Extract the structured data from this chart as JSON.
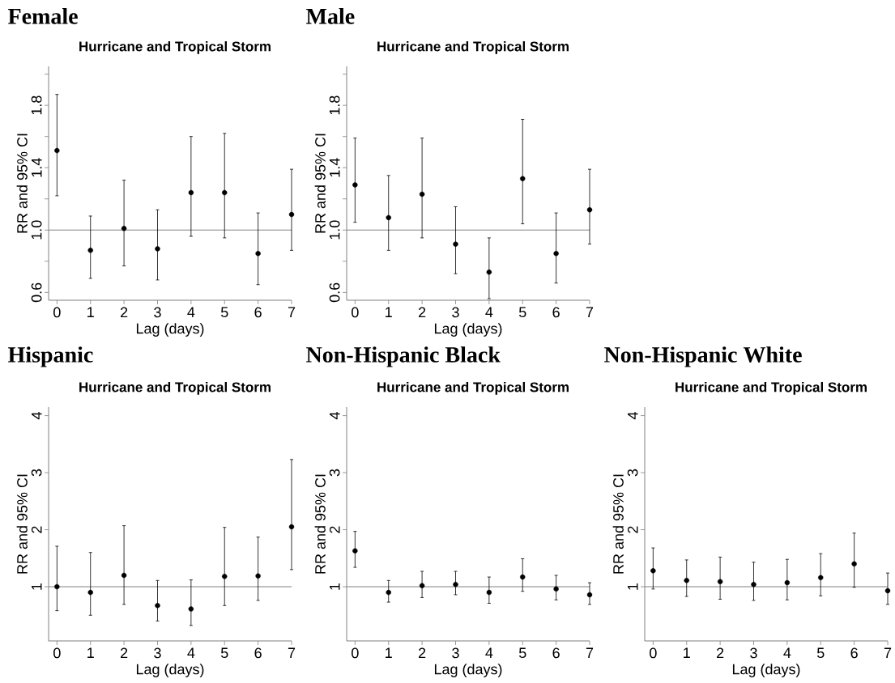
{
  "chart_data": [
    {
      "type": "scatter",
      "title": "Female",
      "subtitle": "Hurricane and Tropical Storm",
      "xlabel": "Lag (days)",
      "ylabel": "RR and 95% CI",
      "color": "#000000",
      "marker": "circle",
      "x": [
        0,
        1,
        2,
        3,
        4,
        5,
        6,
        7
      ],
      "values": [
        1.51,
        0.87,
        1.01,
        0.88,
        1.24,
        1.24,
        0.85,
        1.1
      ],
      "errors": [
        [
          1.22,
          1.87
        ],
        [
          0.69,
          1.09
        ],
        [
          0.77,
          1.32
        ],
        [
          0.68,
          1.13
        ],
        [
          0.96,
          1.6
        ],
        [
          0.95,
          1.62
        ],
        [
          0.65,
          1.11
        ],
        [
          0.87,
          1.39
        ]
      ],
      "xlim": [
        -0.25,
        7
      ],
      "ylim": [
        0.55,
        2.05
      ],
      "xticks": [
        0,
        1,
        2,
        3,
        4,
        5,
        6,
        7
      ],
      "yticks": [
        0.6,
        {
          "value": 0.8,
          "label": null
        },
        {
          "value": 1.0,
          "label": "1.0"
        },
        {
          "value": 1.2,
          "label": null
        },
        1.4,
        {
          "value": 1.6,
          "label": null
        },
        1.8,
        {
          "value": 2.0,
          "label": null
        }
      ],
      "ref_lines": [
        {
          "axis": "y",
          "value": 1,
          "color": "#808080"
        }
      ]
    },
    {
      "type": "scatter",
      "title": "Male",
      "subtitle": "Hurricane and Tropical Storm",
      "xlabel": "Lag (days)",
      "ylabel": "RR and 95% CI",
      "color": "#000000",
      "marker": "circle",
      "x": [
        0,
        1,
        2,
        3,
        4,
        5,
        6,
        7
      ],
      "values": [
        1.29,
        1.08,
        1.23,
        0.91,
        0.73,
        1.33,
        0.85,
        1.13
      ],
      "errors": [
        [
          1.05,
          1.59
        ],
        [
          0.87,
          1.35
        ],
        [
          0.95,
          1.59
        ],
        [
          0.72,
          1.15
        ],
        [
          0.56,
          0.95
        ],
        [
          1.04,
          1.71
        ],
        [
          0.66,
          1.11
        ],
        [
          0.91,
          1.39
        ]
      ],
      "xlim": [
        -0.25,
        7
      ],
      "ylim": [
        0.55,
        2.05
      ],
      "xticks": [
        0,
        1,
        2,
        3,
        4,
        5,
        6,
        7
      ],
      "yticks": [
        0.6,
        {
          "value": 0.8,
          "label": null
        },
        {
          "value": 1.0,
          "label": "1.0"
        },
        {
          "value": 1.2,
          "label": null
        },
        1.4,
        {
          "value": 1.6,
          "label": null
        },
        1.8,
        {
          "value": 2.0,
          "label": null
        }
      ],
      "ref_lines": [
        {
          "axis": "y",
          "value": 1,
          "color": "#808080"
        }
      ]
    },
    {
      "type": "scatter",
      "title": "Hispanic",
      "subtitle": "Hurricane and Tropical Storm",
      "xlabel": "Lag (days)",
      "ylabel": "RR and 95% CI",
      "color": "#000000",
      "marker": "circle",
      "x": [
        0,
        1,
        2,
        3,
        4,
        5,
        6,
        7
      ],
      "values": [
        1.0,
        0.9,
        1.2,
        0.67,
        0.61,
        1.18,
        1.19,
        2.05
      ],
      "errors": [
        [
          0.58,
          1.71
        ],
        [
          0.5,
          1.6
        ],
        [
          0.69,
          2.07
        ],
        [
          0.4,
          1.11
        ],
        [
          0.32,
          1.12
        ],
        [
          0.67,
          2.04
        ],
        [
          0.76,
          1.87
        ],
        [
          1.3,
          3.23
        ]
      ],
      "xlim": [
        -0.25,
        7
      ],
      "ylim": [
        0.05,
        4.15
      ],
      "xticks": [
        0,
        1,
        2,
        3,
        4,
        5,
        6,
        7
      ],
      "yticks": [
        1,
        2,
        3,
        4
      ],
      "ref_lines": [
        {
          "axis": "y",
          "value": 1,
          "color": "#808080"
        }
      ]
    },
    {
      "type": "scatter",
      "title": "Non-Hispanic Black",
      "subtitle": "Hurricane and Tropical Storm",
      "xlabel": "Lag (days)",
      "ylabel": "RR and 95% CI",
      "color": "#000000",
      "marker": "circle",
      "x": [
        0,
        1,
        2,
        3,
        4,
        5,
        6,
        7
      ],
      "values": [
        1.63,
        0.9,
        1.02,
        1.04,
        0.9,
        1.17,
        0.96,
        0.86
      ],
      "errors": [
        [
          1.34,
          1.97
        ],
        [
          0.73,
          1.11
        ],
        [
          0.81,
          1.27
        ],
        [
          0.86,
          1.27
        ],
        [
          0.71,
          1.17
        ],
        [
          0.92,
          1.49
        ],
        [
          0.77,
          1.2
        ],
        [
          0.69,
          1.07
        ]
      ],
      "xlim": [
        -0.25,
        7
      ],
      "ylim": [
        0.05,
        4.15
      ],
      "xticks": [
        0,
        1,
        2,
        3,
        4,
        5,
        6,
        7
      ],
      "yticks": [
        1,
        2,
        3,
        4
      ],
      "ref_lines": [
        {
          "axis": "y",
          "value": 1,
          "color": "#808080"
        }
      ]
    },
    {
      "type": "scatter",
      "title": "Non-Hispanic White",
      "subtitle": "Hurricane and Tropical Storm",
      "xlabel": "Lag (days)",
      "ylabel": "RR and 95% CI",
      "color": "#000000",
      "marker": "circle",
      "x": [
        0,
        1,
        2,
        3,
        4,
        5,
        6,
        7
      ],
      "values": [
        1.28,
        1.11,
        1.09,
        1.04,
        1.07,
        1.16,
        1.4,
        0.93
      ],
      "errors": [
        [
          0.96,
          1.68
        ],
        [
          0.83,
          1.47
        ],
        [
          0.78,
          1.52
        ],
        [
          0.76,
          1.43
        ],
        [
          0.77,
          1.48
        ],
        [
          0.84,
          1.58
        ],
        [
          0.99,
          1.94
        ],
        [
          0.69,
          1.24
        ]
      ],
      "xlim": [
        -0.25,
        7
      ],
      "ylim": [
        0.05,
        4.15
      ],
      "xticks": [
        0,
        1,
        2,
        3,
        4,
        5,
        6,
        7
      ],
      "yticks": [
        1,
        2,
        3,
        4
      ],
      "ref_lines": [
        {
          "axis": "y",
          "value": 1,
          "color": "#808080"
        }
      ]
    }
  ]
}
